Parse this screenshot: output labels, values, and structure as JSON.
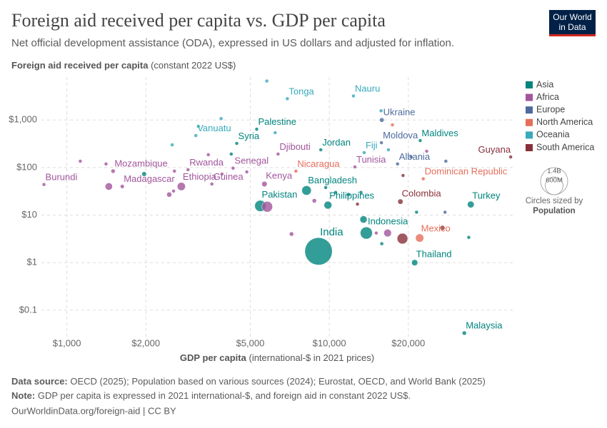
{
  "chart_data": {
    "type": "scatter",
    "title": "Foreign aid received per capita vs. GDP per capita",
    "subtitle": "Net official development assistance (ODA), expressed in US dollars and adjusted for inflation.",
    "ylabel": "Foreign aid received per capita",
    "ylabel_unit": "(constant 2022 US$)",
    "xlabel": "GDP per capita",
    "xlabel_unit": "(international-$ in 2021 prices)",
    "logo": [
      "Our World",
      "in Data"
    ],
    "xscale": "log",
    "yscale": "log",
    "grid": true,
    "legend": "right",
    "xlim": [
      800,
      50000
    ],
    "ylim": [
      0.025,
      8000
    ],
    "xticks": [
      {
        "value": 1000,
        "label": "$1,000"
      },
      {
        "value": 2000,
        "label": "$2,000"
      },
      {
        "value": 5000,
        "label": "$5,000"
      },
      {
        "value": 10000,
        "label": "$10,000"
      },
      {
        "value": 20000,
        "label": "$20,000"
      }
    ],
    "yticks": [
      {
        "value": 1000,
        "label": "$1,000"
      },
      {
        "value": 100,
        "label": "$100"
      },
      {
        "value": 10,
        "label": "$10"
      },
      {
        "value": 1,
        "label": "$1"
      },
      {
        "value": 0.1,
        "label": "$0.1"
      }
    ],
    "size_legend": {
      "title": "Circles sized by",
      "name": "Population",
      "ticks": [
        {
          "value": 1400000000,
          "label": "1.4B"
        },
        {
          "value": 600000000,
          "label": "600M"
        }
      ]
    },
    "series": [
      {
        "name": "Asia",
        "color": "#00847e",
        "labels": [
          "India",
          "Pakistan",
          "Bangladesh",
          "Philippines",
          "Indonesia",
          "Thailand",
          "Malaysia",
          "Turkey",
          "Maldives",
          "Jordan",
          "Syria",
          "Palestine",
          null,
          null,
          null,
          null,
          null,
          null,
          null,
          null,
          null,
          null
        ],
        "x": [
          9100,
          5460,
          8190,
          9880,
          13840,
          21150,
          32700,
          34600,
          22200,
          9280,
          4440,
          5290,
          1970,
          4230,
          9690,
          10570,
          11830,
          15850,
          34000,
          21500,
          13200,
          13500
        ],
        "values": [
          1.73,
          15.6,
          33,
          16.2,
          4.2,
          1.0,
          0.033,
          16.7,
          369,
          236,
          322,
          640,
          73,
          192,
          38,
          30,
          27,
          2.5,
          3.4,
          11.5,
          30,
          8.1
        ],
        "sizes": [
          1428000000,
          240000000,
          171000000,
          115000000,
          277000000,
          72000000,
          34000000,
          85000000,
          500000,
          11000000,
          23000000,
          5000000,
          41000000,
          6000000,
          20000000,
          10000000,
          30000000,
          20000000,
          10000000,
          5000000,
          3000000,
          98000000
        ]
      },
      {
        "name": "Africa",
        "color": "#a2559c",
        "labels": [
          "Burundi",
          "Mozambique",
          "Madagascar",
          "Ethiopia",
          "Rwanda",
          "Guinea",
          "Senegal",
          "Kenya",
          "Djibouti",
          "Tunisia",
          null,
          null,
          null,
          null,
          null,
          null,
          null,
          null,
          null,
          null,
          null,
          null,
          null,
          null,
          null
        ],
        "x": [
          818,
          1500,
          1626,
          2730,
          2895,
          3570,
          4300,
          5660,
          6380,
          12520,
          1125,
          1410,
          1445,
          2455,
          2550,
          2570,
          3460,
          3900,
          4850,
          5800,
          7180,
          8770,
          15100,
          16680,
          23500
        ],
        "values": [
          44,
          84,
          40,
          40,
          90,
          45,
          97,
          45,
          192,
          103,
          136,
          119,
          40,
          27,
          32,
          84,
          186,
          73,
          81,
          15,
          4,
          20,
          4.2,
          4.2,
          220
        ],
        "sizes": [
          13000000,
          33000000,
          30000000,
          126000000,
          14000000,
          14000000,
          18000000,
          55000000,
          1100000,
          12000000,
          5000000,
          7000000,
          100000000,
          48000000,
          20000000,
          9000000,
          2000000,
          22000000,
          8000000,
          220000000,
          35000000,
          35000000,
          10000000,
          110000000,
          1500000
        ]
      },
      {
        "name": "Europe",
        "color": "#4c6a9c",
        "labels": [
          "Ukraine",
          "Moldova",
          "Albania",
          null,
          null,
          null
        ],
        "x": [
          15850,
          15800,
          18200,
          20500,
          27800,
          27600
        ],
        "values": [
          1000,
          333,
          119,
          167,
          136,
          11.5
        ],
        "sizes": [
          38000000,
          2500000,
          2800000,
          6600000,
          3000000,
          7000000
        ]
      },
      {
        "name": "North America",
        "color": "#e56e5a",
        "labels": [
          "Nicaragua",
          "Dominican Republic",
          "Mexico",
          null
        ],
        "x": [
          7460,
          22800,
          22090,
          17400
        ],
        "values": [
          84,
          58,
          3.3,
          790
        ],
        "sizes": [
          7000000,
          11000000,
          128000000,
          100000
        ]
      },
      {
        "name": "Oceania",
        "color": "#38aaba",
        "labels": [
          "Tonga",
          "Nauru",
          "Vanuatu",
          "Fiji",
          null,
          null,
          null,
          null,
          null,
          null,
          null
        ],
        "x": [
          6920,
          12360,
          3100,
          13580,
          2520,
          3170,
          3870,
          6220,
          5780,
          16800,
          15750
        ],
        "values": [
          2800,
          3200,
          470,
          206,
          300,
          735,
          1070,
          540,
          6600,
          236,
          1560
        ],
        "sizes": [
          100000,
          12000,
          330000,
          930000,
          700000,
          130000,
          50000,
          200000,
          10000,
          200000,
          50000
        ]
      },
      {
        "name": "South America",
        "color": "#883039",
        "labels": [
          "Guyana",
          "Colombia",
          null,
          null,
          null,
          null
        ],
        "x": [
          49100,
          18660,
          19000,
          12800,
          27000,
          19100
        ],
        "values": [
          167,
          19.2,
          3.2,
          17,
          5.4,
          68
        ],
        "sizes": [
          800000,
          52000000,
          216000000,
          12000000,
          45000000,
          7000000
        ]
      }
    ],
    "footer": {
      "source_label": "Data source:",
      "source": "OECD (2025); Population based on various sources (2024); Eurostat, OECD, and World Bank (2025)",
      "note_label": "Note:",
      "note": "GDP per capita is expressed in 2021 international-$, and foreign aid in constant 2022 US$.",
      "url": "OurWorldinData.org/foreign-aid | CC BY"
    }
  }
}
